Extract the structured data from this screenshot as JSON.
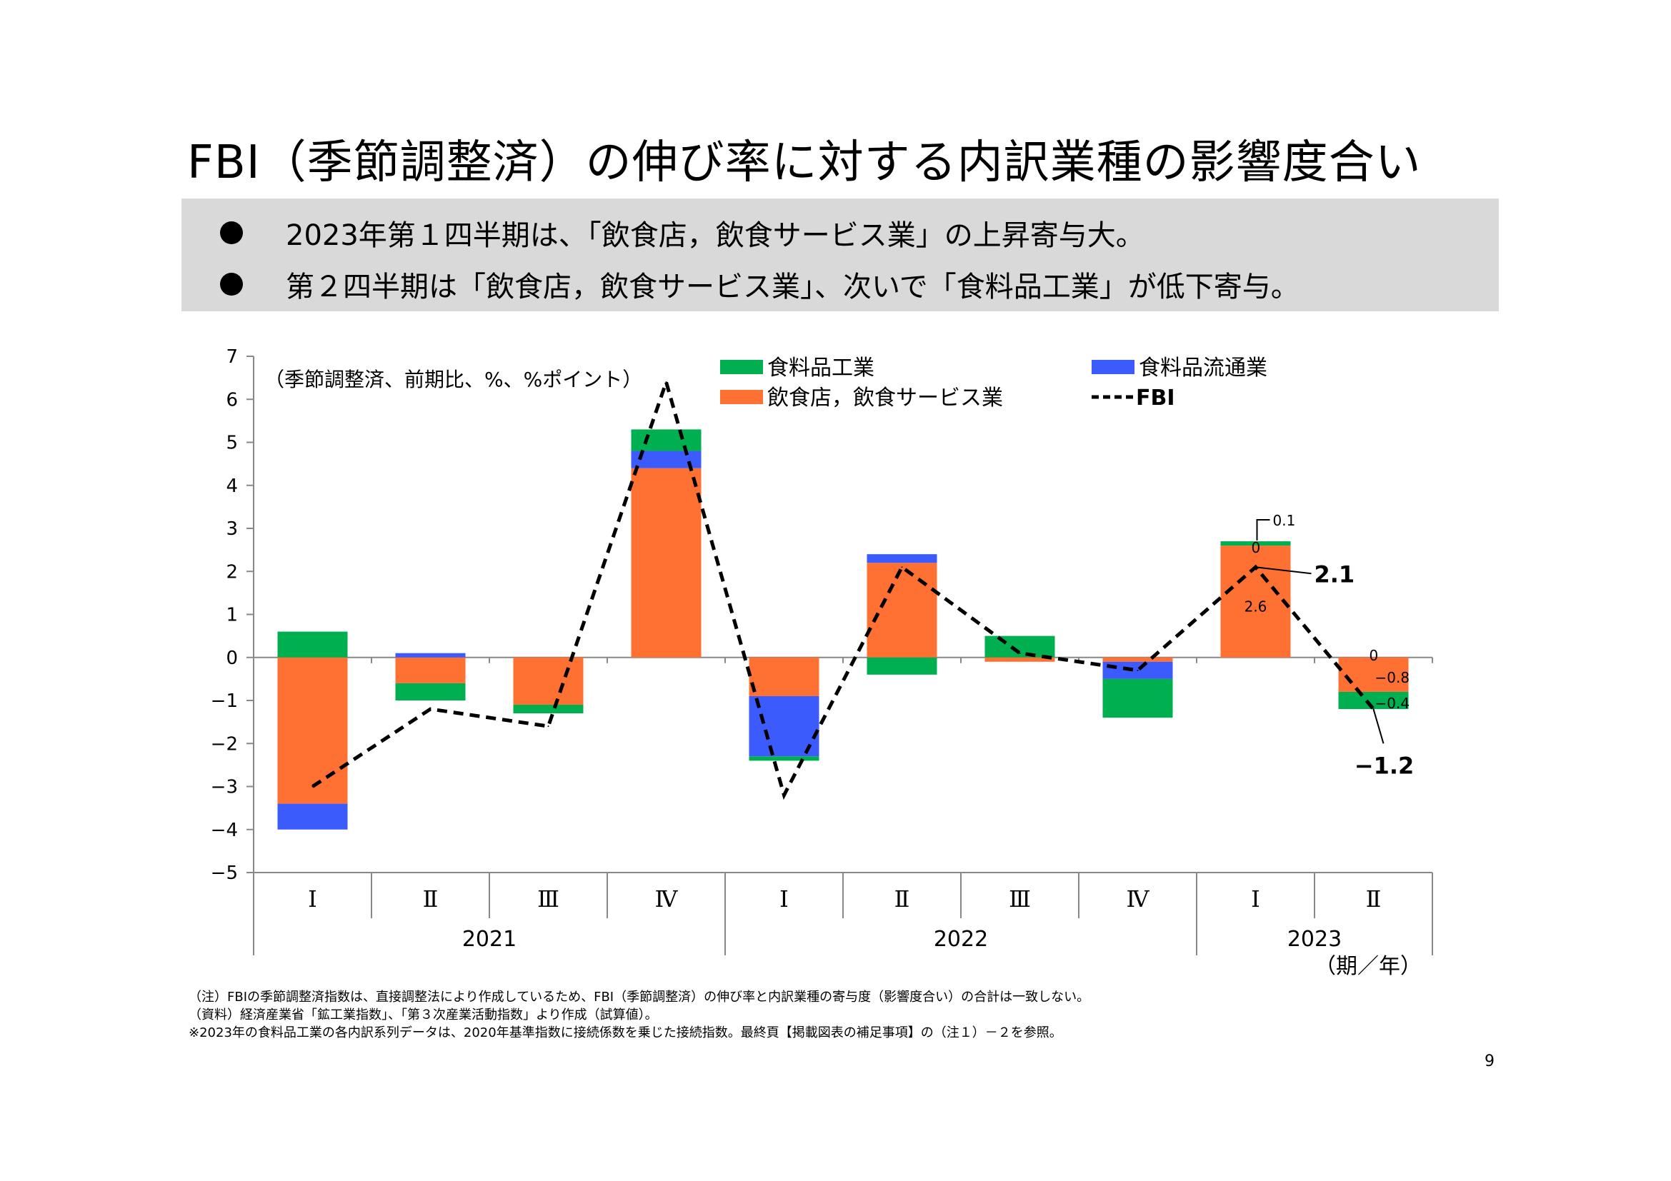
{
  "title": "FBI（季節調整済）の伸び率に対する内訳業種の影響度合い",
  "summary": [
    "2023年第１四半期は、「飲食店，飲食サービス業」の上昇寄与大。",
    "第２四半期は「飲食店，飲食サービス業」、次いで「食料品工業」が低下寄与。"
  ],
  "chart_data": {
    "type": "bar",
    "subtitle": "（季節調整済、前期比、%、%ポイント）",
    "xlabel": "（期／年）",
    "ylim": [
      -5,
      7
    ],
    "yticks": [
      "7",
      "6",
      "5",
      "4",
      "3",
      "2",
      "1",
      "0",
      "−1",
      "−2",
      "−3",
      "−4",
      "−5"
    ],
    "categories": [
      "I",
      "II",
      "III",
      "IV",
      "I",
      "II",
      "III",
      "IV",
      "I",
      "II"
    ],
    "category_labels": [
      "Ⅰ",
      "Ⅱ",
      "Ⅲ",
      "Ⅳ",
      "Ⅰ",
      "Ⅱ",
      "Ⅲ",
      "Ⅳ",
      "Ⅰ",
      "Ⅱ"
    ],
    "years": [
      {
        "label": "2021",
        "quarters": 4
      },
      {
        "label": "2022",
        "quarters": 4
      },
      {
        "label": "2023",
        "quarters": 2
      }
    ],
    "series": [
      {
        "name": "食料品工業",
        "color": "#00b050",
        "kind": "bar",
        "values": [
          0.6,
          -0.4,
          -0.2,
          0.5,
          -0.1,
          -0.4,
          0.5,
          -0.9,
          0.1,
          -0.4
        ]
      },
      {
        "name": "食料品流通業",
        "color": "#3b5bfd",
        "kind": "bar",
        "values": [
          -0.6,
          0.1,
          0.0,
          0.4,
          -1.4,
          0.2,
          0.0,
          -0.4,
          0.0,
          0.0
        ]
      },
      {
        "name": "飲食店，飲食サービス業",
        "color": "#ff7033",
        "kind": "bar",
        "values": [
          -3.4,
          -0.6,
          -1.1,
          4.4,
          -0.9,
          2.2,
          -0.1,
          -0.1,
          2.6,
          -0.8
        ]
      },
      {
        "name": "FBI",
        "color": "#000000",
        "kind": "line",
        "values": [
          -3.0,
          -1.2,
          -1.6,
          6.4,
          -3.2,
          2.1,
          0.1,
          -0.3,
          2.1,
          -1.2
        ]
      }
    ],
    "data_labels": {
      "q2023_1": {
        "food": "0.1",
        "distribution": "0",
        "restaurant": "2.6",
        "fbi": "2.1"
      },
      "q2023_2": {
        "distribution": "0",
        "restaurant": "−0.8",
        "food": "−0.4",
        "fbi": "−1.2"
      }
    },
    "legend": "top"
  },
  "notes": [
    "（注）FBIの季節調整済指数は、直接調整法により作成しているため、FBI（季節調整済）の伸び率と内訳業種の寄与度（影響度合い）の合計は一致しない。",
    "（資料）経済産業省「鉱工業指数」、「第３次産業活動指数」より作成（試算値）。",
    "※2023年の食料品工業の各内訳系列データは、2020年基準指数に接続係数を乗じた接続指数。最終頁【掲載図表の補足事項】の（注１）－２を参照。"
  ],
  "page_number": "9"
}
